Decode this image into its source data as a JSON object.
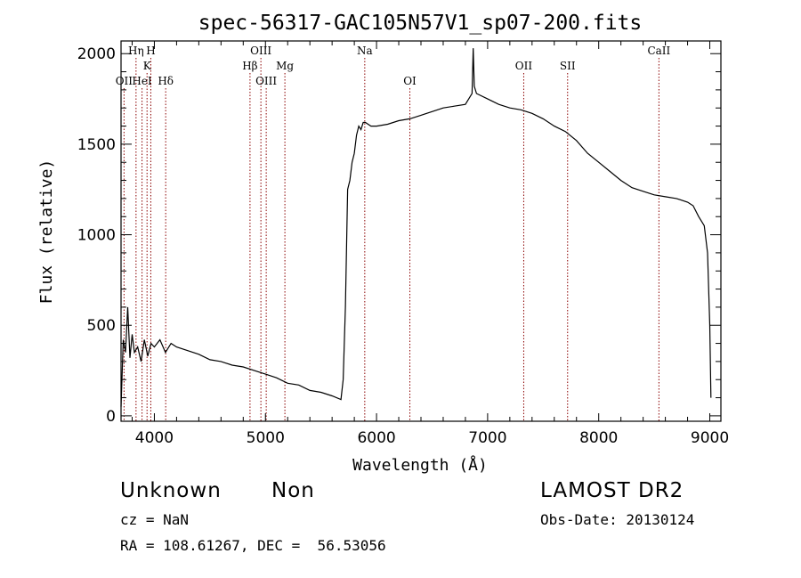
{
  "chart_data": {
    "type": "line",
    "title": "spec-56317-GAC105N57V1_sp07-200.fits",
    "xlabel": "Wavelength (Å)",
    "ylabel": "Flux (relative)",
    "xlim": [
      3700,
      9100
    ],
    "ylim": [
      -30,
      2070
    ],
    "xticks": [
      4000,
      5000,
      6000,
      7000,
      8000,
      9000
    ],
    "yticks": [
      0,
      500,
      1000,
      1500,
      2000
    ],
    "grid": false,
    "line_color": "#000000",
    "marker_color": "#8b0000",
    "spectrum": {
      "x": [
        3700,
        3720,
        3740,
        3760,
        3780,
        3800,
        3820,
        3850,
        3880,
        3910,
        3940,
        3970,
        4000,
        4050,
        4100,
        4150,
        4200,
        4300,
        4400,
        4500,
        4600,
        4700,
        4800,
        4900,
        5000,
        5100,
        5200,
        5300,
        5400,
        5500,
        5600,
        5680,
        5700,
        5720,
        5740,
        5760,
        5780,
        5800,
        5820,
        5840,
        5860,
        5880,
        5900,
        5950,
        6000,
        6100,
        6200,
        6300,
        6400,
        6500,
        6600,
        6700,
        6800,
        6860,
        6870,
        6880,
        6900,
        7000,
        7100,
        7200,
        7300,
        7400,
        7500,
        7600,
        7700,
        7800,
        7900,
        8000,
        8100,
        8200,
        8300,
        8400,
        8500,
        8600,
        8700,
        8800,
        8850,
        8900,
        8950,
        8980,
        9000,
        9010
      ],
      "y": [
        50,
        420,
        350,
        600,
        320,
        450,
        350,
        380,
        300,
        420,
        330,
        400,
        380,
        420,
        350,
        400,
        380,
        360,
        340,
        310,
        300,
        280,
        270,
        250,
        230,
        210,
        180,
        170,
        140,
        130,
        110,
        90,
        200,
        600,
        1250,
        1300,
        1400,
        1450,
        1550,
        1600,
        1580,
        1620,
        1620,
        1600,
        1600,
        1610,
        1630,
        1640,
        1660,
        1680,
        1700,
        1710,
        1720,
        1780,
        2030,
        1820,
        1780,
        1750,
        1720,
        1700,
        1690,
        1670,
        1640,
        1600,
        1570,
        1520,
        1450,
        1400,
        1350,
        1300,
        1260,
        1240,
        1220,
        1210,
        1200,
        1180,
        1160,
        1100,
        1050,
        900,
        500,
        100
      ]
    },
    "lines": [
      {
        "label": "OII",
        "x": 3727,
        "row": 3
      },
      {
        "label": "Hη",
        "x": 3835,
        "row": 1
      },
      {
        "label": "HeI",
        "x": 3889,
        "row": 3
      },
      {
        "label": "K",
        "x": 3934,
        "row": 2
      },
      {
        "label": "H",
        "x": 3968,
        "row": 1
      },
      {
        "label": "Hδ",
        "x": 4102,
        "row": 3
      },
      {
        "label": "Hβ",
        "x": 4861,
        "row": 2
      },
      {
        "label": "OIII",
        "x": 4959,
        "row": 1
      },
      {
        "label": "OIII",
        "x": 5007,
        "row": 3
      },
      {
        "label": "Mg",
        "x": 5175,
        "row": 2
      },
      {
        "label": "Na",
        "x": 5894,
        "row": 1
      },
      {
        "label": "OI",
        "x": 6300,
        "row": 3
      },
      {
        "label": "OII",
        "x": 7325,
        "row": 2
      },
      {
        "label": "SII",
        "x": 7720,
        "row": 2
      },
      {
        "label": "CaII",
        "x": 8542,
        "row": 1
      }
    ]
  },
  "info": {
    "class_label": "Unknown",
    "subclass_label": "Non",
    "survey": "LAMOST DR2",
    "cz": "cz = NaN",
    "obs_date": "Obs-Date: 20130124",
    "coords": "RA = 108.61267, DEC =  56.53056"
  }
}
